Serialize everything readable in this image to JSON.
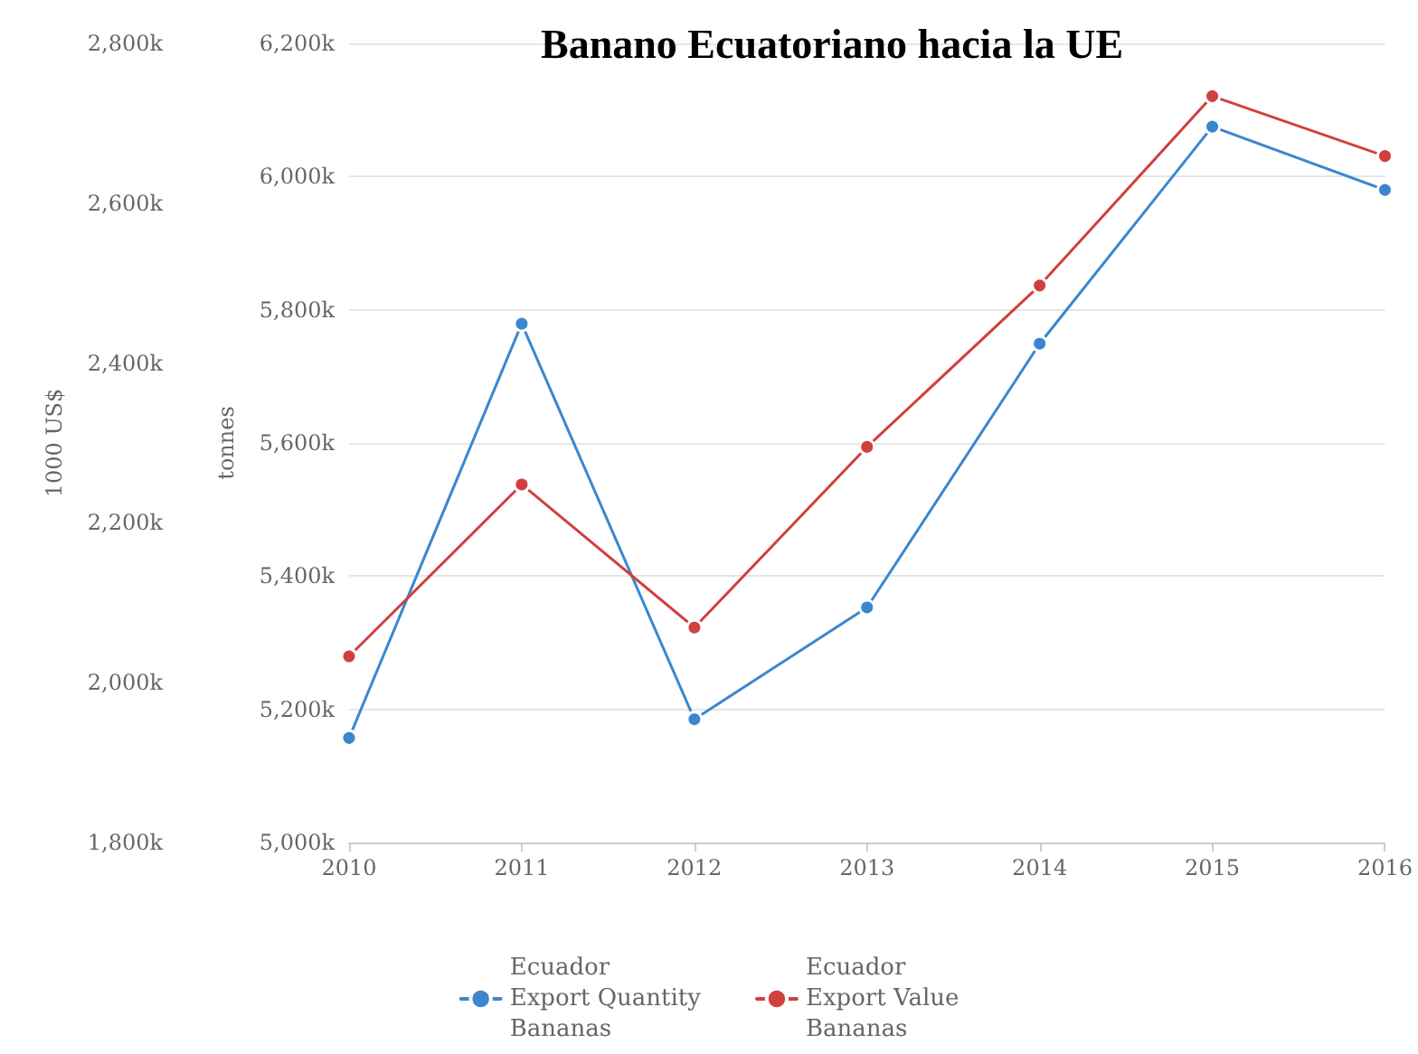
{
  "chart_data": {
    "type": "line",
    "title": "Banano Ecuatoriano hacia la UE",
    "ylabel": "tonnes",
    "y2label": "1000 US$",
    "categories": [
      "2010",
      "2011",
      "2012",
      "2013",
      "2014",
      "2015",
      "2016"
    ],
    "series": [
      {
        "name": "Ecuador\nExport Quantity\nBananas",
        "color": "#3a87d0",
        "values": [
          5157000,
          5779000,
          5185000,
          5353000,
          5749000,
          6075000,
          5980000
        ]
      },
      {
        "name": "Ecuador\nExport Value\nBananas",
        "color": "#d13f3f",
        "axis": "y2",
        "values": [
          2033000,
          2248000,
          2069000,
          2295000,
          2497000,
          2734000,
          2659000
        ]
      }
    ],
    "ylim": [
      5000000,
      6200000
    ],
    "yticks": [
      {
        "value": 5000000,
        "label": "5,000k"
      },
      {
        "value": 5200000,
        "label": "5,200k"
      },
      {
        "value": 5400000,
        "label": "5,400k"
      },
      {
        "value": 5600000,
        "label": "5,600k"
      },
      {
        "value": 5800000,
        "label": "5,800k"
      },
      {
        "value": 6000000,
        "label": "6,000k"
      },
      {
        "value": 6200000,
        "label": "6,200k"
      }
    ],
    "y2lim": [
      1800000,
      2800000
    ],
    "y2ticks": [
      {
        "value": 1800000,
        "label": "1,800k"
      },
      {
        "value": 2000000,
        "label": "2,000k"
      },
      {
        "value": 2200000,
        "label": "2,200k"
      },
      {
        "value": 2400000,
        "label": "2,400k"
      },
      {
        "value": 2600000,
        "label": "2,600k"
      },
      {
        "value": 2800000,
        "label": "2,800k"
      }
    ],
    "grid": "y",
    "legend": "bottom",
    "marker": "circle",
    "line_style": "solid"
  }
}
